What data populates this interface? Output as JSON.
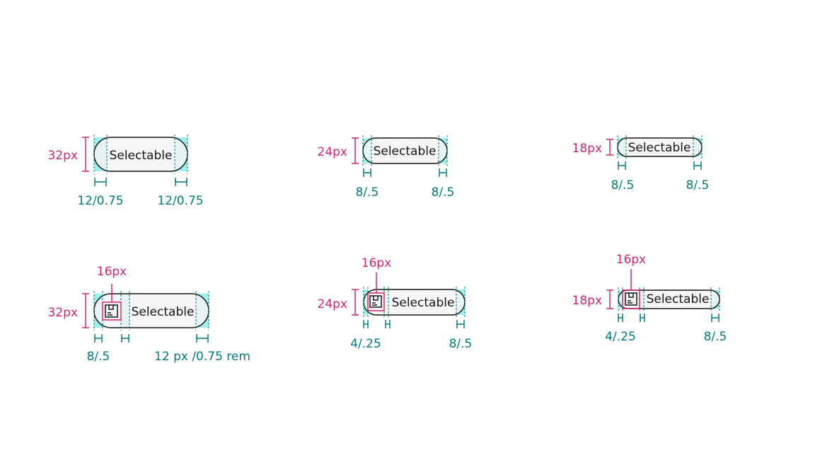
{
  "colors": {
    "magenta": "#d12771",
    "teal": "#007d79",
    "padding_fill": "#9ef0f0",
    "chip_fill": "#f4f4f4",
    "chip_stroke": "#161616"
  },
  "chip_text": "Selectable",
  "icon_name": "package-icon",
  "rows": [
    {
      "id": "text-only",
      "chips": [
        {
          "id": "lg",
          "height_label": "32px",
          "left_pad": "12/0.75",
          "right_pad": "12/0.75"
        },
        {
          "id": "md",
          "height_label": "24px",
          "left_pad": "8/.5",
          "right_pad": "8/.5"
        },
        {
          "id": "sm",
          "height_label": "18px",
          "left_pad": "8/.5",
          "right_pad": "8/.5"
        }
      ]
    },
    {
      "id": "with-icon",
      "chips": [
        {
          "id": "lg",
          "height_label": "32px",
          "icon_label": "16px",
          "left_pad": "8/.5",
          "right_pad": "12 px /0.75 rem"
        },
        {
          "id": "md",
          "height_label": "24px",
          "icon_label": "16px",
          "left_pad": "4/.25",
          "right_pad": "8/.5"
        },
        {
          "id": "sm",
          "height_label": "18px",
          "icon_label": "16px",
          "left_pad": "4/.25",
          "right_pad": "8/.5"
        }
      ]
    }
  ]
}
